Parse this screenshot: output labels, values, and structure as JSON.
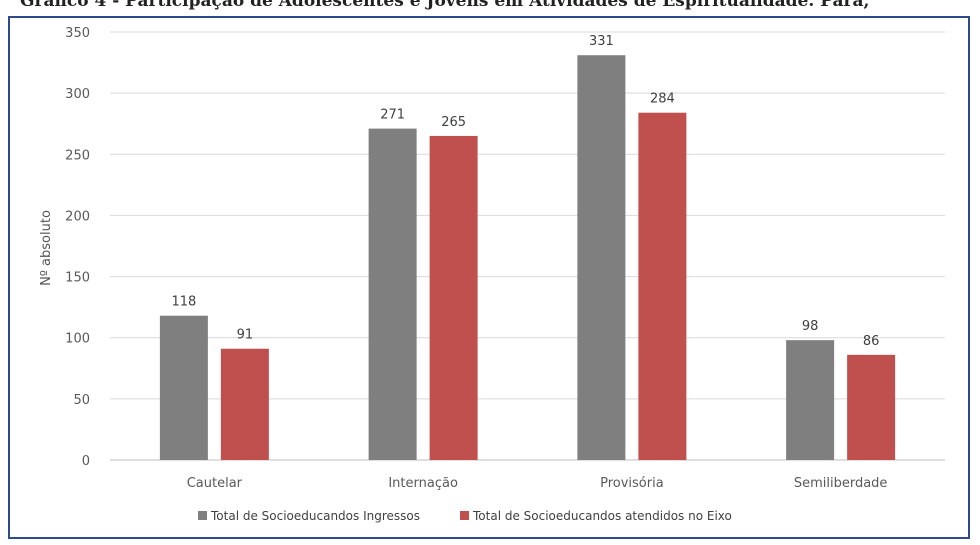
{
  "title": "Gráfico 4 - Participação de Adolescentes e Jovens em Atividades de Espiritualidade. Pará,",
  "chart_data": {
    "type": "bar",
    "categories": [
      "Cautelar",
      "Internação",
      "Provisória",
      "Semiliberdade"
    ],
    "series": [
      {
        "name": "Total de Socioeducandos Ingressos",
        "color": "#7f7f7f",
        "values": [
          118,
          271,
          331,
          98
        ]
      },
      {
        "name": "Total de Socioeducandos atendidos no Eixo",
        "color": "#c0504d",
        "values": [
          91,
          265,
          284,
          86
        ]
      }
    ],
    "ylabel": "Nº absoluto",
    "ylim": [
      0,
      350
    ],
    "yticks": [
      0,
      50,
      100,
      150,
      200,
      250,
      300,
      350
    ],
    "grid": true,
    "data_labels": true,
    "legend_position": "bottom"
  }
}
